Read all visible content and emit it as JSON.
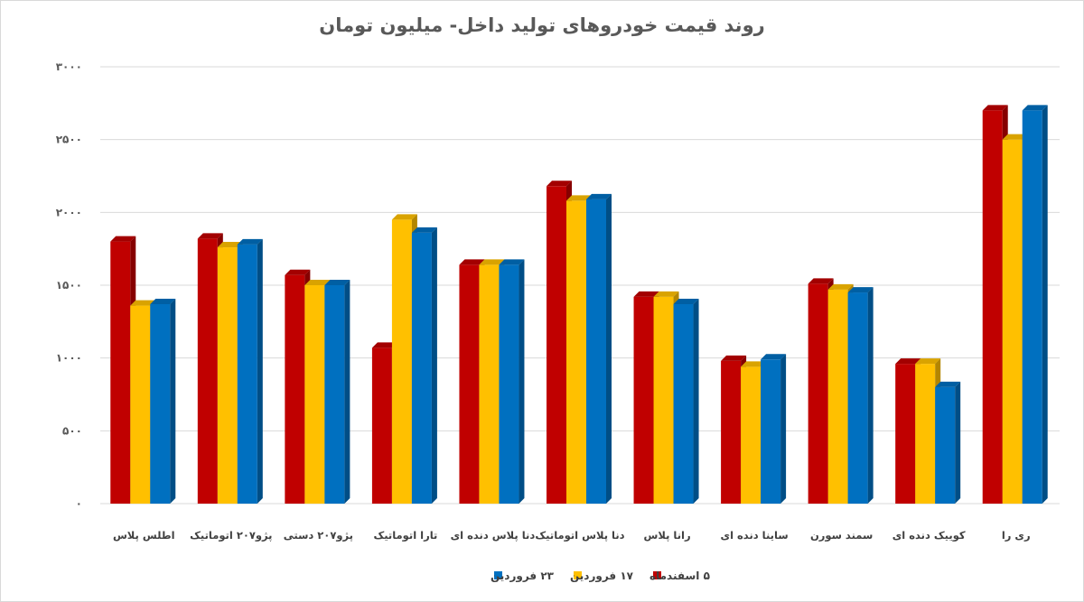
{
  "chart_data": {
    "type": "bar",
    "title": "روند قیمت خودروهای تولید داخل- میلیون تومان",
    "xlabel": "",
    "ylabel": "",
    "ylim": [
      0,
      3000
    ],
    "yticks": [
      0,
      500,
      1000,
      1500,
      2000,
      2500,
      3000
    ],
    "ytick_labels": [
      "۰",
      "۵۰۰",
      "۱۰۰۰",
      "۱۵۰۰",
      "۲۰۰۰",
      "۲۵۰۰",
      "۳۰۰۰"
    ],
    "grid": true,
    "legend_position": "bottom",
    "categories": [
      "اطلس پلاس",
      "پژو۲۰۷ اتوماتیک",
      "پژو۲۰۷ دستی",
      "تارا اتوماتیک",
      "دنا پلاس دنده ای",
      "دنا پلاس اتوماتیک",
      "رانا پلاس",
      "ساینا دنده ای",
      "سمند سورن",
      "کوییک دنده ای",
      "ری را"
    ],
    "series": [
      {
        "name": "۵ اسفندماه",
        "color": "#c00000",
        "values": [
          1800,
          1820,
          1570,
          1070,
          1640,
          2180,
          1420,
          980,
          1510,
          960,
          2700
        ]
      },
      {
        "name": "۱۷ فروردین",
        "color": "#ffc000",
        "values": [
          1360,
          1760,
          1500,
          1950,
          1640,
          2080,
          1420,
          940,
          1470,
          960,
          2500
        ]
      },
      {
        "name": "۲۳ فروردین",
        "color": "#0070c0",
        "values": [
          1370,
          1780,
          1500,
          1860,
          1640,
          2090,
          1370,
          990,
          1450,
          800,
          2700
        ]
      }
    ]
  }
}
